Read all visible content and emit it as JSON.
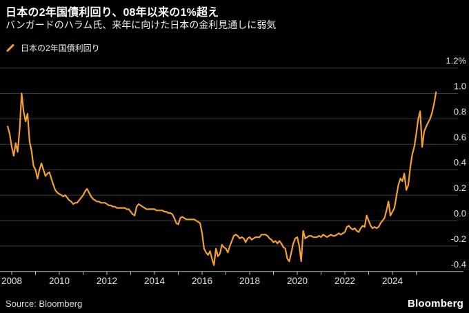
{
  "header": {
    "title": "日本の2年国債利回り、08年以来の1%超え",
    "subtitle": "バンガードのハラム氏、来年に向けた日本の金利見通しに弱気"
  },
  "legend": {
    "series_label": "日本の2年国債利回り"
  },
  "footer": {
    "source": "Source: Bloomberg",
    "brand": "Bloomberg"
  },
  "colors": {
    "background": "#000000",
    "line": "#F5A02E",
    "grid": "#3D3D3D",
    "axis": "#B5B5B5",
    "title_text": "#FFFFFF",
    "tick_label_text": "#E3E3E3"
  },
  "chart_data": {
    "type": "line",
    "title": "日本の2年国債利回り、08年以来の1%超え",
    "subtitle": "バンガードのハラム氏、来年に向けた日本の金利見通しに弱気",
    "unit": "%",
    "grid": true,
    "legend_position": "top-left",
    "ylim": [
      -0.45,
      1.25
    ],
    "xlim": [
      2007.7,
      2026.05
    ],
    "y_ticks": [
      {
        "value": 1.2,
        "label": "1.2%"
      },
      {
        "value": 1.0,
        "label": "1.0"
      },
      {
        "value": 0.8,
        "label": "0.8"
      },
      {
        "value": 0.6,
        "label": "0.6"
      },
      {
        "value": 0.4,
        "label": "0.4"
      },
      {
        "value": 0.2,
        "label": "0.2"
      },
      {
        "value": 0.0,
        "label": "0.0"
      },
      {
        "value": -0.2,
        "label": "-0.2"
      },
      {
        "value": -0.4,
        "label": "-0.4"
      }
    ],
    "x_tick_years": [
      2008,
      2009,
      2010,
      2011,
      2012,
      2013,
      2014,
      2015,
      2016,
      2017,
      2018,
      2019,
      2020,
      2021,
      2022,
      2023,
      2024,
      2025
    ],
    "x_label_years": [
      "2008",
      "2010",
      "2012",
      "2014",
      "2016",
      "2018",
      "2020",
      "2022",
      "2024"
    ],
    "series": [
      {
        "name": "日本の2年国債利回り",
        "color": "#F5A02E",
        "sampling": "monthly (estimated from plot)",
        "start": "2007-11",
        "end": "2025-11",
        "start_year_fraction": 2007.8333,
        "points_per_year": 12,
        "values": [
          0.74,
          0.68,
          0.58,
          0.51,
          0.61,
          0.54,
          0.72,
          1.0,
          0.86,
          0.78,
          0.84,
          0.62,
          0.55,
          0.43,
          0.4,
          0.33,
          0.4,
          0.45,
          0.4,
          0.35,
          0.37,
          0.38,
          0.33,
          0.28,
          0.24,
          0.22,
          0.21,
          0.2,
          0.19,
          0.2,
          0.18,
          0.16,
          0.15,
          0.13,
          0.14,
          0.14,
          0.16,
          0.18,
          0.2,
          0.23,
          0.25,
          0.22,
          0.19,
          0.17,
          0.16,
          0.15,
          0.15,
          0.14,
          0.14,
          0.14,
          0.13,
          0.12,
          0.12,
          0.11,
          0.11,
          0.1,
          0.1,
          0.1,
          0.1,
          0.1,
          0.09,
          0.09,
          0.07,
          0.05,
          0.04,
          0.11,
          0.13,
          0.12,
          0.11,
          0.1,
          0.09,
          0.09,
          0.09,
          0.09,
          0.09,
          0.08,
          0.08,
          0.08,
          0.08,
          0.07,
          0.07,
          0.06,
          0.06,
          0.05,
          0.02,
          -0.02,
          -0.03,
          0.02,
          0.03,
          0.02,
          0.01,
          0.01,
          0.01,
          0.01,
          0.01,
          0.0,
          -0.01,
          -0.02,
          -0.1,
          -0.22,
          -0.25,
          -0.27,
          -0.24,
          -0.3,
          -0.35,
          -0.22,
          -0.28,
          -0.26,
          -0.19,
          -0.21,
          -0.22,
          -0.25,
          -0.2,
          -0.16,
          -0.12,
          -0.11,
          -0.12,
          -0.14,
          -0.13,
          -0.14,
          -0.17,
          -0.14,
          -0.13,
          -0.15,
          -0.14,
          -0.13,
          -0.13,
          -0.13,
          -0.11,
          -0.11,
          -0.11,
          -0.12,
          -0.14,
          -0.15,
          -0.17,
          -0.16,
          -0.18,
          -0.16,
          -0.18,
          -0.21,
          -0.22,
          -0.3,
          -0.32,
          -0.25,
          -0.18,
          -0.14,
          -0.13,
          -0.2,
          -0.32,
          -0.08,
          -0.14,
          -0.13,
          -0.12,
          -0.12,
          -0.13,
          -0.13,
          -0.13,
          -0.12,
          -0.13,
          -0.11,
          -0.12,
          -0.13,
          -0.12,
          -0.11,
          -0.12,
          -0.12,
          -0.11,
          -0.1,
          -0.11,
          -0.1,
          -0.09,
          -0.05,
          -0.04,
          -0.06,
          -0.07,
          -0.06,
          -0.08,
          -0.09,
          -0.06,
          -0.04,
          -0.05,
          0.04,
          0.0,
          -0.04,
          -0.06,
          -0.05,
          -0.06,
          -0.05,
          -0.02,
          0.0,
          0.02,
          0.08,
          0.15,
          0.04,
          0.07,
          0.1,
          0.19,
          0.28,
          0.33,
          0.31,
          0.37,
          0.24,
          0.28,
          0.42,
          0.52,
          0.58,
          0.68,
          0.8,
          0.86,
          0.58,
          0.7,
          0.74,
          0.77,
          0.8,
          0.85,
          0.92,
          1.01
        ]
      }
    ]
  }
}
